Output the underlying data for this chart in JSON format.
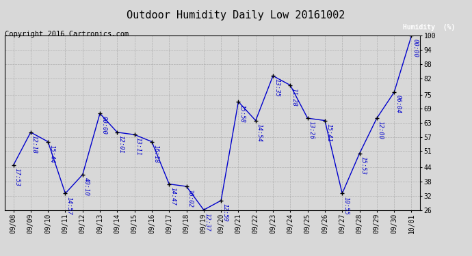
{
  "title": "Outdoor Humidity Daily Low 20161002",
  "copyright": "Copyright 2016 Cartronics.com",
  "legend_label": "Humidity  (%)",
  "x_labels": [
    "09/08",
    "09/09",
    "09/10",
    "09/11",
    "09/12",
    "09/13",
    "09/14",
    "09/15",
    "09/16",
    "09/17",
    "09/18",
    "09/19",
    "09/20",
    "09/21",
    "09/22",
    "09/23",
    "09/24",
    "09/25",
    "09/26",
    "09/27",
    "09/28",
    "09/29",
    "09/30",
    "10/01"
  ],
  "y_values": [
    45,
    59,
    55,
    33,
    41,
    67,
    59,
    58,
    55,
    37,
    36,
    26,
    30,
    72,
    64,
    83,
    79,
    65,
    64,
    33,
    50,
    65,
    76,
    100
  ],
  "point_labels": [
    "17:53",
    "12:18",
    "15:44",
    "14:57",
    "40:10",
    "00:00",
    "12:01",
    "13:11",
    "16:18",
    "14:47",
    "16:02",
    "12:37",
    "12:59",
    "15:58",
    "14:54",
    "13:35",
    "11:28",
    "13:26",
    "15:41",
    "10:55",
    "15:53",
    "12:00",
    "06:04",
    "00:00"
  ],
  "ylim_min": 26,
  "ylim_max": 100,
  "yticks": [
    26,
    32,
    38,
    44,
    51,
    57,
    63,
    69,
    75,
    82,
    88,
    94,
    100
  ],
  "line_color": "#0000cc",
  "marker_color": "#000000",
  "bg_color": "#d8d8d8",
  "grid_color": "#aaaaaa",
  "legend_bg": "#0000cc",
  "legend_text": "#ffffff",
  "title_fontsize": 11,
  "label_fontsize": 7,
  "point_label_fontsize": 6.5,
  "copyright_fontsize": 7.5
}
